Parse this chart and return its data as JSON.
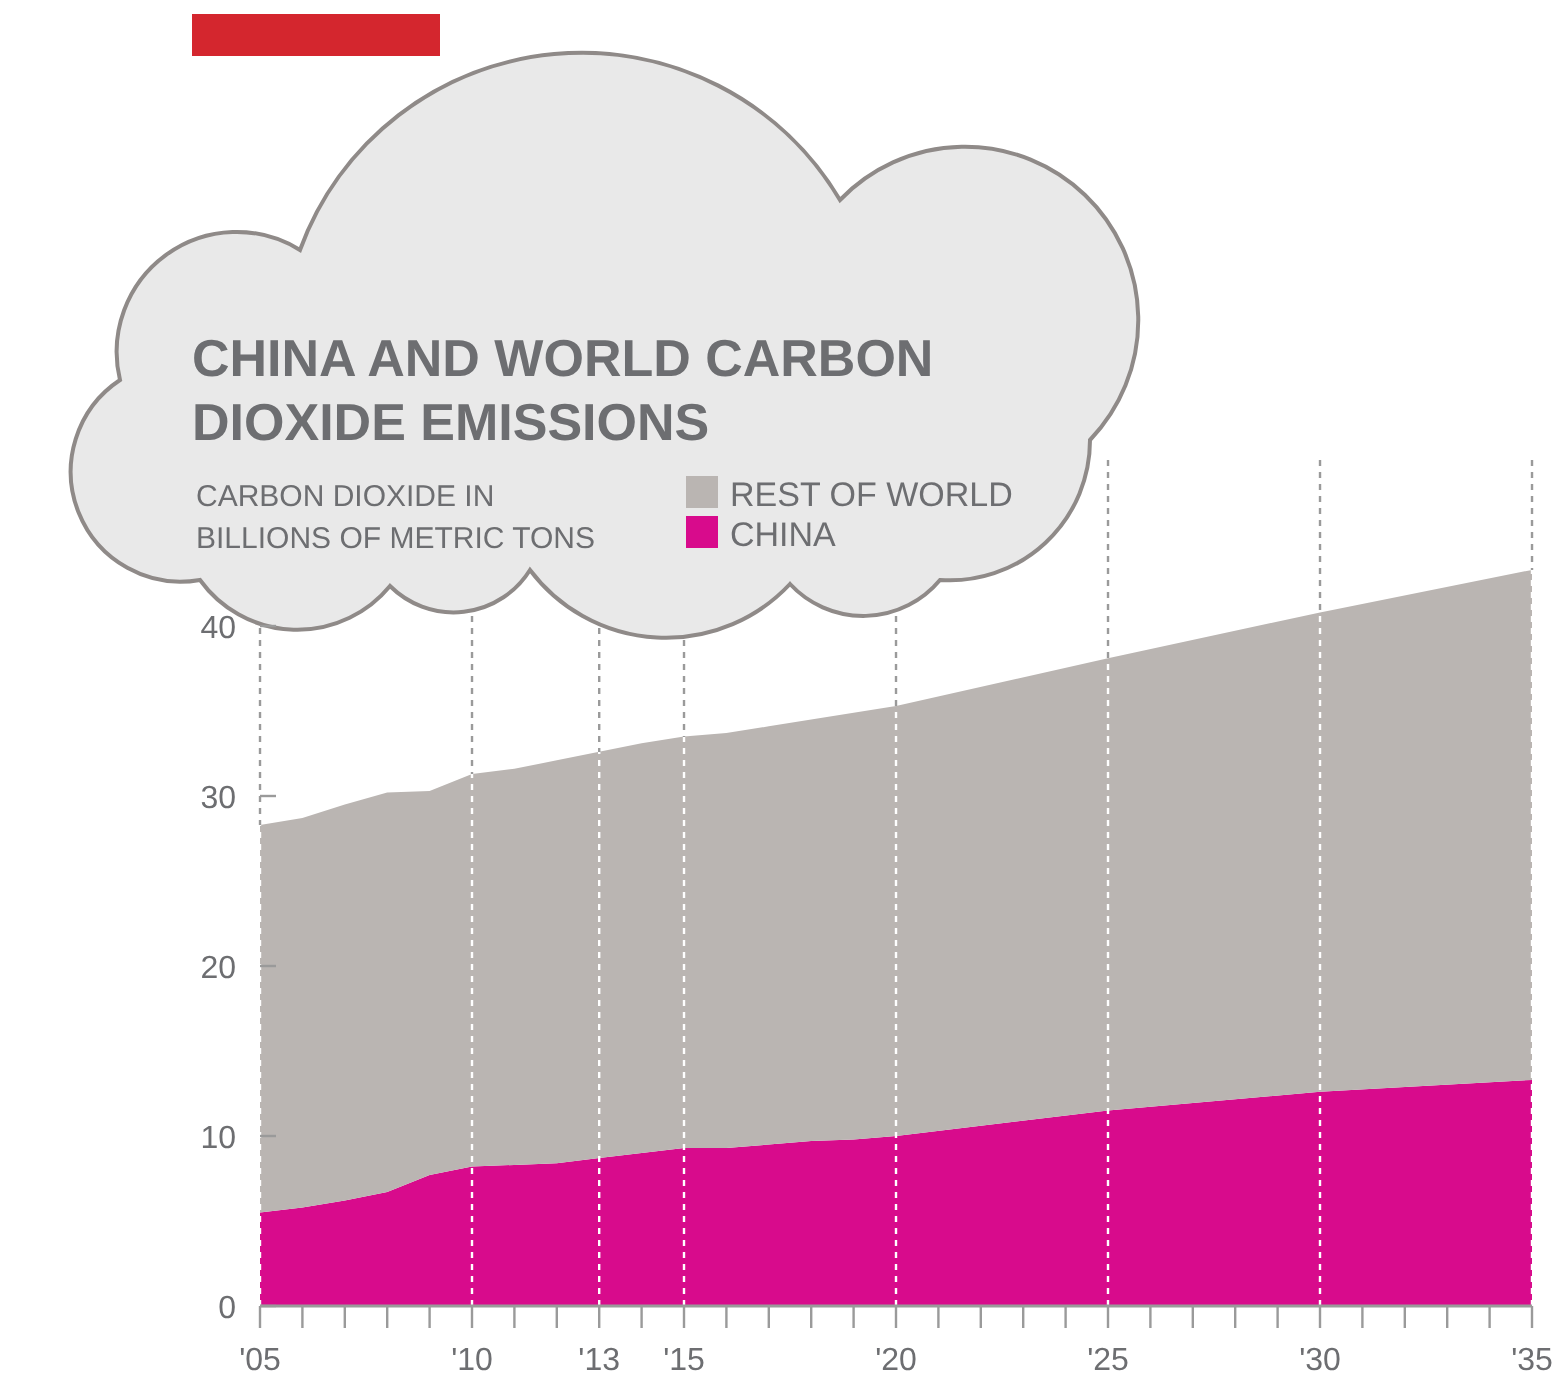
{
  "chart_data": {
    "type": "area",
    "stacked": true,
    "title": "CHINA AND WORLD CARBON DIOXIDE EMISSIONS",
    "ylabel": "CARBON DIOXIDE IN\nBILLIONS OF METRIC TONS",
    "x": [
      2005,
      2006,
      2007,
      2008,
      2009,
      2010,
      2011,
      2012,
      2013,
      2014,
      2015,
      2016,
      2017,
      2018,
      2019,
      2020,
      2025,
      2030,
      2035
    ],
    "series": [
      {
        "name": "CHINA",
        "color": "#d80b8c",
        "values": [
          5.5,
          5.8,
          6.2,
          6.7,
          7.7,
          8.2,
          8.3,
          8.4,
          8.7,
          9.0,
          9.3,
          9.3,
          9.5,
          9.7,
          9.8,
          10.0,
          11.5,
          12.6,
          13.3
        ]
      },
      {
        "name": "REST OF WORLD",
        "color": "#bab5b2",
        "values": [
          22.8,
          22.9,
          23.3,
          23.5,
          22.6,
          23.1,
          23.3,
          23.7,
          23.9,
          24.1,
          24.2,
          24.4,
          24.6,
          24.8,
          25.1,
          25.3,
          26.6,
          28.2,
          30.0
        ]
      }
    ],
    "xlim": [
      2005,
      2035
    ],
    "xticks": [
      {
        "value": 2005,
        "label": "'05"
      },
      {
        "value": 2006,
        "label": null
      },
      {
        "value": 2007,
        "label": null
      },
      {
        "value": 2008,
        "label": null
      },
      {
        "value": 2009,
        "label": null
      },
      {
        "value": 2010,
        "label": "'10"
      },
      {
        "value": 2011,
        "label": null
      },
      {
        "value": 2012,
        "label": null
      },
      {
        "value": 2013,
        "label": "'13"
      },
      {
        "value": 2014,
        "label": null
      },
      {
        "value": 2015,
        "label": "'15"
      },
      {
        "value": 2016,
        "label": null
      },
      {
        "value": 2017,
        "label": null
      },
      {
        "value": 2018,
        "label": null
      },
      {
        "value": 2019,
        "label": null
      },
      {
        "value": 2020,
        "label": "'20"
      },
      {
        "value": 2021,
        "label": null
      },
      {
        "value": 2022,
        "label": null
      },
      {
        "value": 2023,
        "label": null
      },
      {
        "value": 2024,
        "label": null
      },
      {
        "value": 2025,
        "label": "'25"
      },
      {
        "value": 2026,
        "label": null
      },
      {
        "value": 2027,
        "label": null
      },
      {
        "value": 2028,
        "label": null
      },
      {
        "value": 2029,
        "label": null
      },
      {
        "value": 2030,
        "label": "'30"
      },
      {
        "value": 2031,
        "label": null
      },
      {
        "value": 2032,
        "label": null
      },
      {
        "value": 2033,
        "label": null
      },
      {
        "value": 2034,
        "label": null
      },
      {
        "value": 2035,
        "label": "'35"
      }
    ],
    "ylim": [
      0,
      50
    ],
    "yticks": [
      0,
      10,
      20,
      30,
      40
    ],
    "grid": "x",
    "legend": "top left"
  }
}
